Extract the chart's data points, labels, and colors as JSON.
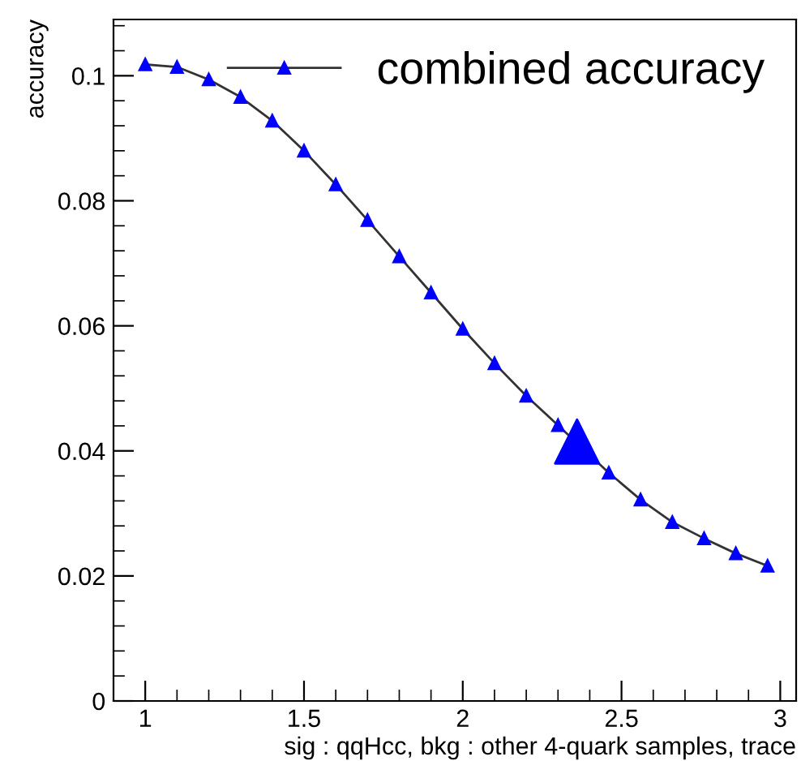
{
  "chart_data": {
    "type": "line",
    "xlabel": "sig : qqHcc, bkg : other 4-quark samples, trace",
    "ylabel": "accuracy",
    "xlim": [
      0.9,
      3.05
    ],
    "ylim": [
      0,
      0.109
    ],
    "xticks": [
      1,
      1.5,
      2,
      2.5,
      3
    ],
    "yticks": [
      0,
      0.02,
      0.04,
      0.06,
      0.08,
      0.1
    ],
    "grid": false,
    "legend": "top right",
    "marker": "triangle",
    "line_style": "solid",
    "series": [
      {
        "name": "combined accuracy",
        "color": "#0000ff",
        "x": [
          1.0,
          1.1,
          1.2,
          1.3,
          1.4,
          1.5,
          1.6,
          1.7,
          1.8,
          1.9,
          2.0,
          2.1,
          2.2,
          2.3,
          2.46,
          2.56,
          2.66,
          2.76,
          2.86,
          2.96
        ],
        "values": [
          0.1018,
          0.1014,
          0.0994,
          0.0966,
          0.0928,
          0.088,
          0.0826,
          0.0769,
          0.0711,
          0.0653,
          0.0595,
          0.054,
          0.0488,
          0.0441,
          0.0365,
          0.0322,
          0.0286,
          0.026,
          0.0236,
          0.0216
        ]
      },
      {
        "type": "scatter",
        "color": "#0000ff",
        "x": [
          2.36
        ],
        "values": [
          0.0415
        ]
      }
    ]
  }
}
